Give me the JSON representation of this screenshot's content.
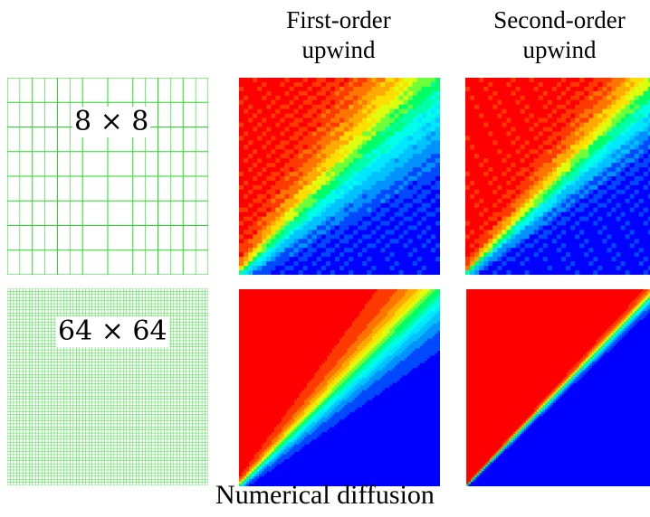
{
  "headers": {
    "first_order": {
      "line1": "First-order",
      "line2": "upwind"
    },
    "second_order": {
      "line1": "Second-order",
      "line2": "upwind"
    }
  },
  "meshes": [
    {
      "label": "8 × 8",
      "cells": 8,
      "refine_cols": 3
    },
    {
      "label": "64 × 64",
      "cells": 64,
      "refine_cols": 0
    }
  ],
  "caption": "Numerical diffusion",
  "colors": {
    "mesh_line": "#22dd22",
    "colormap": [
      "#0000ff",
      "#00aaff",
      "#00ffff",
      "#00ff66",
      "#ffff00",
      "#ff8800",
      "#ff0000"
    ]
  }
}
